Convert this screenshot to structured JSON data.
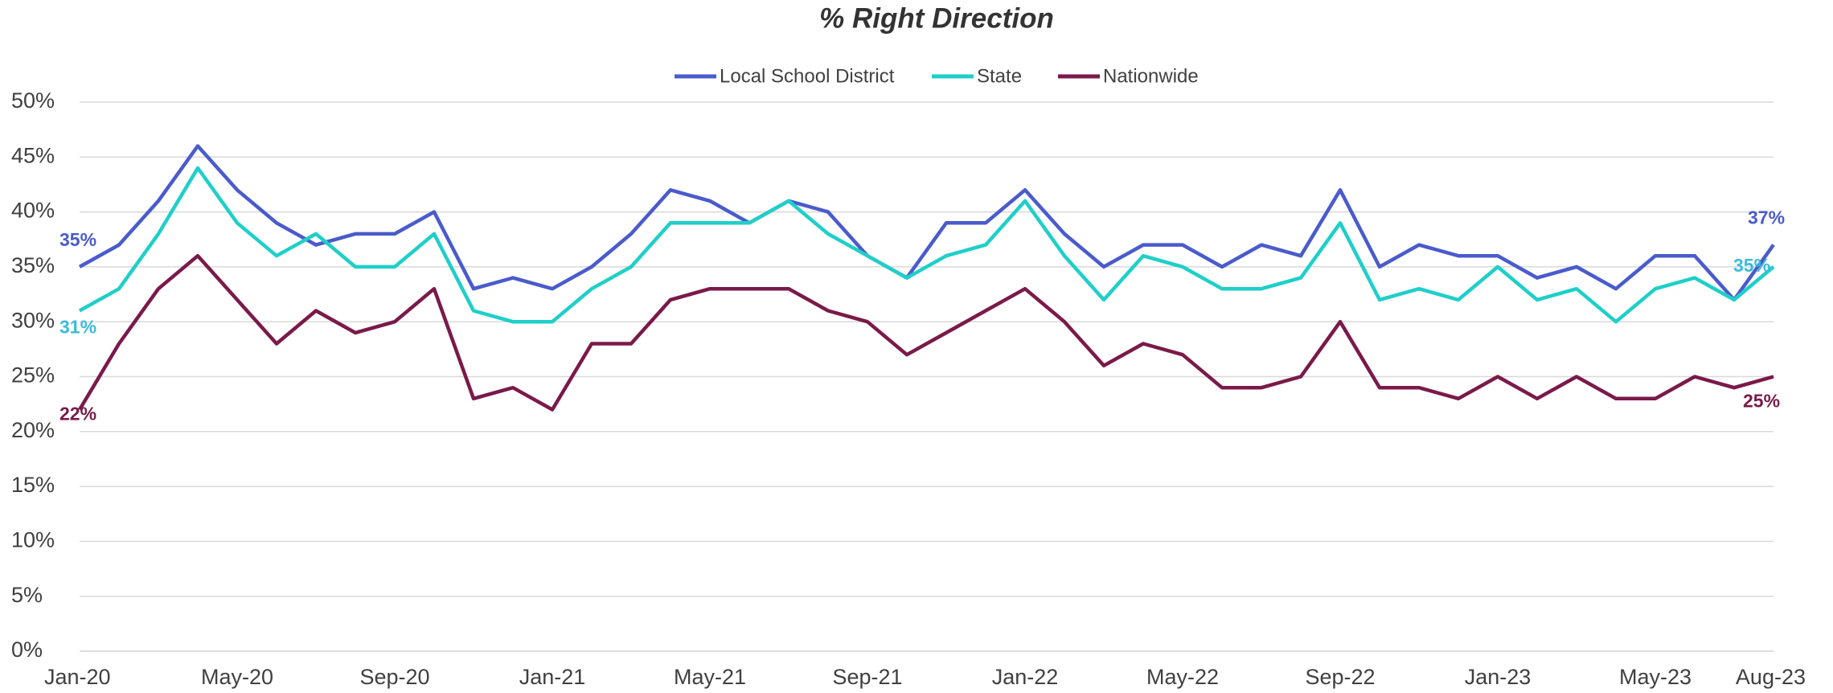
{
  "chart_data": {
    "type": "line",
    "title": "% Right Direction",
    "categories": [
      "Jan-20",
      null,
      null,
      null,
      "May-20",
      null,
      null,
      null,
      "Sep-20",
      null,
      null,
      null,
      "Jan-21",
      null,
      null,
      null,
      "May-21",
      null,
      null,
      null,
      "Sep-21",
      null,
      null,
      null,
      "Jan-22",
      null,
      null,
      null,
      "May-22",
      null,
      null,
      null,
      "Sep-22",
      null,
      null,
      null,
      "Jan-23",
      null,
      null,
      null,
      "May-23",
      null,
      null,
      "Aug-23"
    ],
    "series": [
      {
        "name": "Local School District",
        "color": "#4a5bcc",
        "values": [
          35,
          37,
          41,
          46,
          42,
          39,
          37,
          38,
          38,
          40,
          33,
          34,
          33,
          35,
          38,
          42,
          41,
          39,
          41,
          40,
          36,
          34,
          39,
          39,
          42,
          38,
          35,
          37,
          37,
          35,
          37,
          36,
          42,
          35,
          37,
          36,
          36,
          34,
          35,
          33,
          36,
          36,
          32,
          37
        ],
        "value_labels": [
          "35%",
          null,
          null,
          null,
          null,
          null,
          null,
          null,
          null,
          null,
          null,
          null,
          null,
          null,
          null,
          null,
          null,
          null,
          null,
          null,
          null,
          null,
          null,
          null,
          null,
          null,
          null,
          null,
          null,
          null,
          null,
          null,
          null,
          null,
          null,
          null,
          null,
          null,
          null,
          null,
          null,
          null,
          null,
          "37%"
        ]
      },
      {
        "name": "State",
        "color": "#1fcfc9",
        "values": [
          31,
          33,
          38,
          44,
          39,
          36,
          38,
          35,
          35,
          38,
          31,
          30,
          30,
          33,
          35,
          39,
          39,
          39,
          41,
          38,
          36,
          34,
          36,
          37,
          41,
          36,
          32,
          36,
          35,
          33,
          33,
          34,
          39,
          32,
          33,
          32,
          35,
          32,
          33,
          30,
          33,
          34,
          32,
          35
        ],
        "value_labels": [
          "31%",
          null,
          null,
          null,
          null,
          null,
          null,
          null,
          null,
          null,
          null,
          null,
          null,
          null,
          null,
          null,
          null,
          null,
          null,
          null,
          null,
          null,
          null,
          null,
          null,
          null,
          null,
          null,
          null,
          null,
          null,
          null,
          null,
          null,
          null,
          null,
          null,
          null,
          null,
          null,
          null,
          null,
          null,
          "35%"
        ]
      },
      {
        "name": "Nationwide",
        "color": "#7a1a4a",
        "values": [
          22,
          28,
          33,
          36,
          32,
          28,
          31,
          29,
          30,
          33,
          23,
          24,
          22,
          28,
          28,
          32,
          33,
          33,
          33,
          31,
          30,
          27,
          29,
          31,
          33,
          30,
          26,
          28,
          27,
          24,
          24,
          25,
          30,
          24,
          24,
          23,
          25,
          23,
          25,
          23,
          23,
          25,
          24,
          25
        ],
        "value_labels": [
          "22%",
          null,
          null,
          null,
          null,
          null,
          null,
          null,
          null,
          null,
          null,
          null,
          null,
          null,
          null,
          null,
          null,
          null,
          null,
          null,
          null,
          null,
          null,
          null,
          null,
          null,
          null,
          null,
          null,
          null,
          null,
          null,
          null,
          null,
          null,
          null,
          null,
          null,
          null,
          null,
          null,
          null,
          null,
          "25%"
        ]
      }
    ],
    "ylim": [
      0,
      50
    ],
    "yticks": [
      {
        "value": 0,
        "label": "0%"
      },
      {
        "value": 5,
        "label": "5%"
      },
      {
        "value": 10,
        "label": "10%"
      },
      {
        "value": 15,
        "label": "15%"
      },
      {
        "value": 20,
        "label": "20%"
      },
      {
        "value": 25,
        "label": "25%"
      },
      {
        "value": 30,
        "label": "30%"
      },
      {
        "value": 35,
        "label": "35%"
      },
      {
        "value": 40,
        "label": "40%"
      },
      {
        "value": 45,
        "label": "45%"
      },
      {
        "value": 50,
        "label": "50%"
      }
    ],
    "grid": true,
    "legend": "top"
  }
}
